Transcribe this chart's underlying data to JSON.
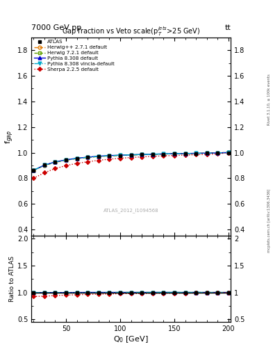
{
  "title": "Gap fraction vs Veto scale(p$_T^{jets}$>25 GeV)",
  "header_left": "7000 GeV pp",
  "header_right": "tt",
  "watermark": "ATLAS_2012_I1094568",
  "right_label_top": "Rivet 3.1.10, ≥ 100k events",
  "right_label_bot": "mcplots.cern.ch [arXiv:1306.3436]",
  "xlabel": "Q$_0$ [GeV]",
  "ylabel_main": "f$_{gap}$",
  "ylabel_ratio": "Ratio to ATLAS",
  "ylim_main": [
    0.35,
    1.9
  ],
  "ylim_ratio": [
    0.45,
    2.05
  ],
  "yticks_main": [
    0.4,
    0.6,
    0.8,
    1.0,
    1.2,
    1.4,
    1.6,
    1.8
  ],
  "yticks_ratio": [
    0.5,
    1.0,
    1.5,
    2.0
  ],
  "xlim": [
    18,
    202
  ],
  "xticks": [
    50,
    100,
    150,
    200
  ],
  "x_data": [
    20,
    30,
    40,
    50,
    60,
    70,
    80,
    90,
    100,
    110,
    120,
    130,
    140,
    150,
    160,
    170,
    180,
    190,
    200
  ],
  "atlas_y": [
    0.863,
    0.905,
    0.928,
    0.944,
    0.955,
    0.963,
    0.97,
    0.975,
    0.978,
    0.981,
    0.984,
    0.986,
    0.988,
    0.99,
    0.992,
    0.993,
    0.995,
    0.997,
    1.0
  ],
  "herwig271_y": [
    0.862,
    0.9,
    0.925,
    0.942,
    0.954,
    0.963,
    0.97,
    0.975,
    0.979,
    0.982,
    0.985,
    0.987,
    0.989,
    0.991,
    0.993,
    0.994,
    0.996,
    0.998,
    1.001
  ],
  "herwig721_y": [
    0.862,
    0.9,
    0.925,
    0.942,
    0.954,
    0.963,
    0.97,
    0.975,
    0.979,
    0.982,
    0.985,
    0.987,
    0.989,
    0.991,
    0.993,
    0.994,
    0.996,
    0.998,
    1.001
  ],
  "pythia8308_y": [
    0.862,
    0.903,
    0.928,
    0.944,
    0.956,
    0.965,
    0.972,
    0.977,
    0.98,
    0.983,
    0.986,
    0.988,
    0.99,
    0.992,
    0.993,
    0.995,
    0.996,
    0.998,
    1.001
  ],
  "pythia8308v_y": [
    0.863,
    0.903,
    0.927,
    0.943,
    0.955,
    0.964,
    0.971,
    0.976,
    0.98,
    0.983,
    0.985,
    0.988,
    0.99,
    0.992,
    0.993,
    0.995,
    0.996,
    0.998,
    1.001
  ],
  "sherpa225_y": [
    0.8,
    0.843,
    0.876,
    0.899,
    0.916,
    0.929,
    0.94,
    0.949,
    0.956,
    0.962,
    0.967,
    0.971,
    0.975,
    0.978,
    0.981,
    0.984,
    0.987,
    0.99,
    1.0
  ],
  "atlas_err": [
    0.01,
    0.008,
    0.006,
    0.005,
    0.004,
    0.004,
    0.003,
    0.003,
    0.003,
    0.003,
    0.003,
    0.003,
    0.003,
    0.003,
    0.003,
    0.003,
    0.003,
    0.003,
    0.003
  ],
  "colors": {
    "atlas": "#000000",
    "herwig271": "#e07800",
    "herwig721": "#60a000",
    "pythia8308": "#0000cc",
    "pythia8308v": "#00aacc",
    "sherpa225": "#cc0000"
  },
  "legend_labels": [
    "ATLAS",
    "Herwig++ 2.7.1 default",
    "Herwig 7.2.1 default",
    "Pythia 8.308 default",
    "Pythia 8.308 vincia-default",
    "Sherpa 2.2.5 default"
  ]
}
